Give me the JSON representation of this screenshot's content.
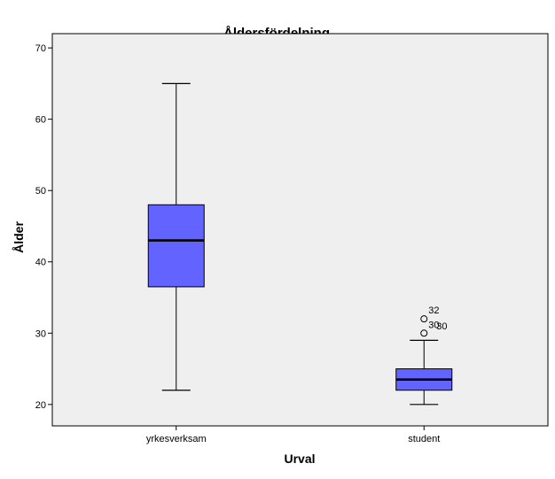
{
  "chart_data": {
    "type": "boxplot",
    "title": "Åldersfördelning",
    "xlabel": "Urval",
    "ylabel": "Ålder",
    "ylim": [
      17,
      72
    ],
    "yticks": [
      20,
      30,
      40,
      50,
      60,
      70
    ],
    "categories": [
      "yrkesverksam",
      "student"
    ],
    "boxes": [
      {
        "category": "yrkesverksam",
        "min": 22,
        "q1": 36.5,
        "median": 43,
        "q3": 48,
        "max": 65,
        "outliers": []
      },
      {
        "category": "student",
        "min": 20,
        "q1": 22,
        "median": 23.5,
        "q3": 25,
        "max": 29,
        "outliers": [
          {
            "value": 32,
            "label": "32"
          },
          {
            "value": 30,
            "label": "30"
          }
        ]
      }
    ],
    "extra_outlier_labels": [
      {
        "category": "student",
        "value": 31,
        "label": "30"
      }
    ],
    "box_color": "#6363ff",
    "plot_background": "#efefef",
    "grid": false
  }
}
